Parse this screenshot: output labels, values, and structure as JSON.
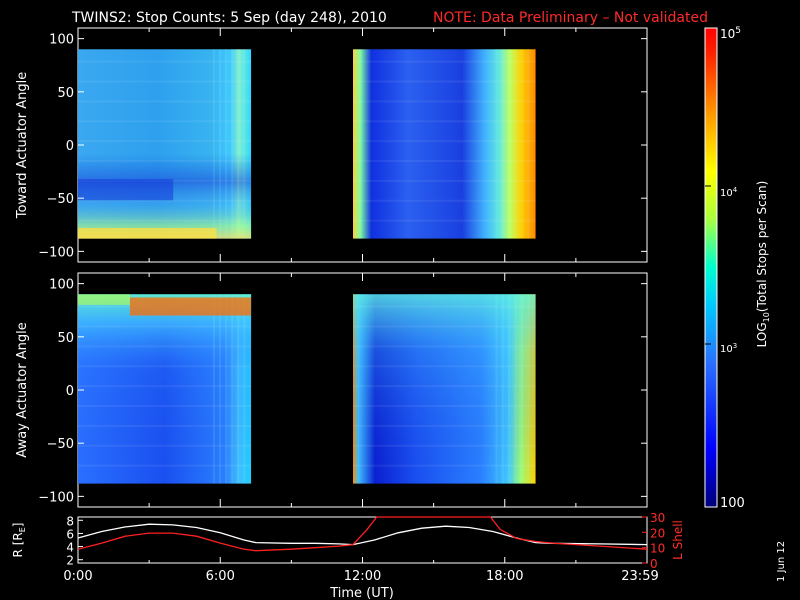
{
  "title": {
    "main": "TWINS2: Stop Counts:  5 Sep (day 248), 2010",
    "note": "NOTE: Data Preliminary – Not validated"
  },
  "chart_data": [
    {
      "type": "heatmap",
      "name": "toward",
      "ylabel": "Toward Actuator Angle",
      "ylim": [
        -110,
        110
      ],
      "yticks": [
        "100",
        "50",
        "0",
        "−50",
        "−100"
      ],
      "ytick_values": [
        100,
        50,
        0,
        -50,
        -100
      ],
      "xlim": [
        0,
        24
      ],
      "data_blocks": [
        {
          "x_start": 0.0,
          "x_end": 7.3,
          "y_start": -88,
          "y_end": 90
        },
        {
          "x_start": 11.6,
          "x_end": 19.3,
          "y_start": -88,
          "y_end": 90
        }
      ]
    },
    {
      "type": "heatmap",
      "name": "away",
      "ylabel": "Away Actuator Angle",
      "ylim": [
        -110,
        110
      ],
      "yticks": [
        "100",
        "50",
        "0",
        "−50",
        "−100"
      ],
      "ytick_values": [
        100,
        50,
        0,
        -50,
        -100
      ],
      "xlim": [
        0,
        24
      ],
      "data_blocks": [
        {
          "x_start": 0.0,
          "x_end": 7.3,
          "y_start": -88,
          "y_end": 90
        },
        {
          "x_start": 11.6,
          "x_end": 19.3,
          "y_start": -88,
          "y_end": 90
        }
      ]
    },
    {
      "type": "line",
      "name": "orbit",
      "ylabel_left": "R [R",
      "ylabel_left_sub": "E",
      "ylabel_left_end": "]",
      "ylabel_right": "L Shell",
      "yticks_left": [
        "8",
        "6",
        "4",
        "2"
      ],
      "ytick_values_left": [
        8,
        6,
        4,
        2
      ],
      "yticks_right": [
        "30",
        "20",
        "10",
        "0"
      ],
      "ytick_values_right": [
        30,
        20,
        10,
        0
      ],
      "ylim_left": [
        1.5,
        8.5
      ],
      "ylim_right": [
        0,
        30
      ],
      "xlabel": "Time (UT)",
      "xticks": [
        "0:00",
        "6:00",
        "12:00",
        "18:00",
        "23:59"
      ],
      "xtick_values": [
        0,
        6,
        12,
        18,
        24
      ],
      "xlim": [
        0,
        24
      ],
      "series": [
        {
          "name": "R",
          "color": "#ffffff",
          "axis": "left",
          "x": [
            0,
            1,
            2,
            3,
            4,
            5,
            6,
            7,
            7.5,
            9,
            10,
            11,
            11.6,
            12.5,
            13.5,
            14.5,
            15.5,
            16.5,
            17.5,
            18.5,
            19.3,
            20,
            22,
            24
          ],
          "y": [
            5.3,
            6.3,
            7.0,
            7.4,
            7.3,
            6.9,
            6.1,
            5.0,
            4.6,
            4.5,
            4.5,
            4.4,
            4.3,
            5.0,
            6.1,
            6.8,
            7.1,
            6.9,
            6.3,
            5.3,
            4.6,
            4.5,
            4.4,
            4.3
          ]
        },
        {
          "name": "L",
          "color": "#ff2020",
          "axis": "right",
          "x": [
            0,
            1,
            2,
            3,
            4,
            5,
            6,
            7,
            7.5,
            9,
            10,
            11,
            11.6,
            12.2,
            12.6,
            17.4,
            17.8,
            18.5,
            19.3,
            20,
            22,
            24
          ],
          "y": [
            9,
            13,
            17.5,
            19.5,
            19.5,
            17.5,
            13,
            9,
            8,
            9,
            10,
            11,
            12,
            22,
            30,
            30,
            22,
            16,
            14,
            13,
            11,
            9
          ]
        }
      ]
    }
  ],
  "colorbar": {
    "label_pre": "LOG",
    "label_sub": "10",
    "label_post": "(Total Stops per Scan)",
    "top_label": "10",
    "top_sup": "5",
    "mid_label": "10",
    "mid_sup": "4",
    "low_label": "10",
    "low_sup": "3",
    "bottom_label": "100",
    "colors": [
      "#00007a",
      "#0000ff",
      "#2a70ff",
      "#00c8ff",
      "#00ffd0",
      "#a8ff40",
      "#ffff00",
      "#ff9a00",
      "#ff2000",
      "#ffffff"
    ]
  },
  "footer": {
    "date": "1 Jun 12"
  }
}
